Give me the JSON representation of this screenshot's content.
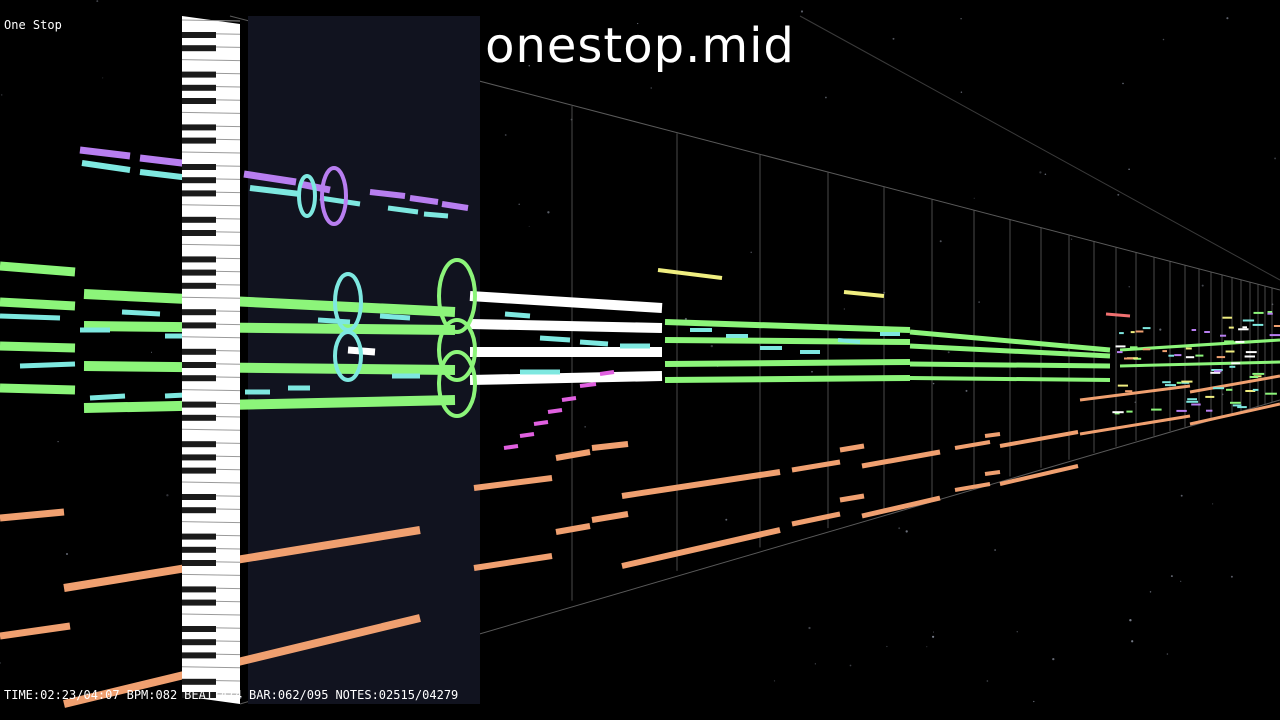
{
  "song_title": "One Stop",
  "file_name": "onestop.mid",
  "status": {
    "time": "TIME:02:23/04:07",
    "bpm": "BPM:082",
    "beat": "BEAT:4/4",
    "bar": "BAR:062/095",
    "notes": "NOTES:02515/04279"
  },
  "colors": {
    "background": "#000000",
    "playhead_band": "#11131f",
    "keyboard_white": "#ffffff",
    "keyboard_black": "#1a1a1a",
    "track_violet": "#b87ef0",
    "track_cyan": "#7ee8e0",
    "track_green": "#8cf57a",
    "track_orange": "#f0a070",
    "track_white": "#ffffff",
    "track_yellow": "#f0ee80",
    "track_magenta": "#e060e0"
  }
}
